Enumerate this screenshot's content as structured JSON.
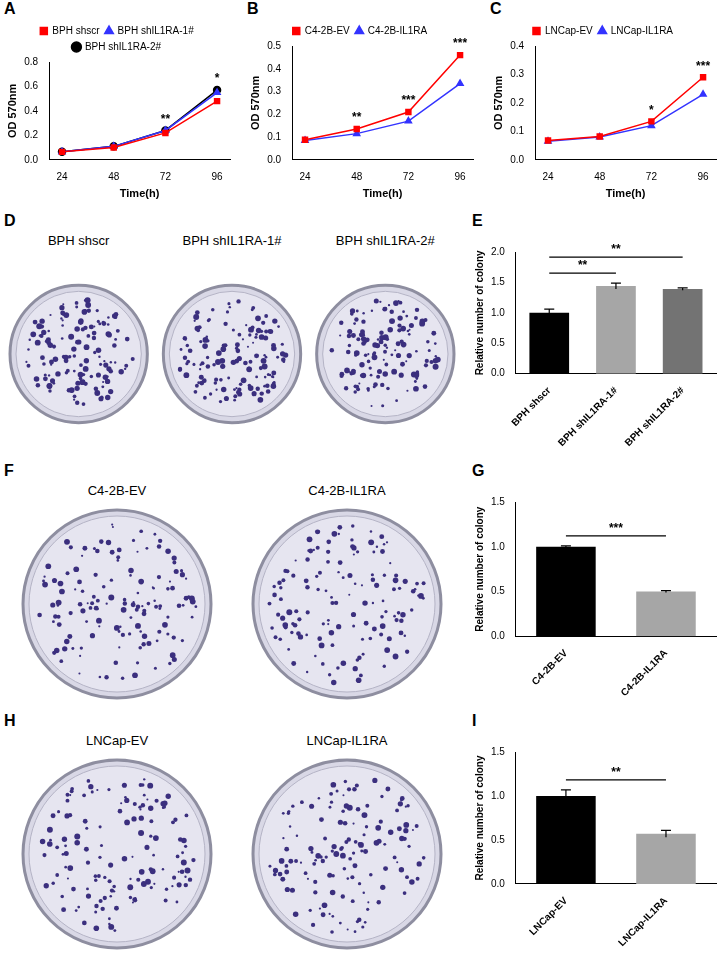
{
  "chart_data": [
    {
      "panel": "A",
      "type": "line",
      "x": [
        24,
        48,
        72,
        96
      ],
      "xlim": [
        18,
        102
      ],
      "xticks": [
        24,
        48,
        72,
        96
      ],
      "ylim": [
        0,
        0.8
      ],
      "yticks": [
        {
          "value": 0,
          "label": "0.0"
        },
        0.2,
        0.4,
        0.6,
        0.8
      ],
      "x_label": "Time(h)",
      "y_label": "OD 570nm",
      "legend": "top",
      "grid": false,
      "series": [
        {
          "name": "BPH shscr",
          "color": "#ff0000",
          "marker": "square",
          "values": [
            0.065,
            0.1,
            0.22,
            0.48
          ]
        },
        {
          "name": "BPH shIL1RA-1#",
          "color": "#3333ff",
          "marker": "triangle",
          "values": [
            0.065,
            0.11,
            0.24,
            0.55
          ]
        },
        {
          "name": "BPH shIL1RA-2#",
          "color": "#000000",
          "marker": "circle",
          "values": [
            0.065,
            0.11,
            0.24,
            0.57
          ]
        }
      ],
      "annotations": [
        {
          "x": 72,
          "text": "**"
        },
        {
          "x": 96,
          "text": "*"
        }
      ]
    },
    {
      "panel": "B",
      "type": "line",
      "x": [
        24,
        48,
        72,
        96
      ],
      "xlim": [
        18,
        102
      ],
      "xticks": [
        24,
        48,
        72,
        96
      ],
      "ylim": [
        0,
        0.5
      ],
      "yticks": [
        {
          "value": 0,
          "label": "0.0"
        },
        0.1,
        0.2,
        0.3,
        0.4,
        0.5
      ],
      "x_label": "Time(h)",
      "y_label": "OD 570nm",
      "legend": "top",
      "grid": false,
      "series": [
        {
          "name": "C4-2B-EV",
          "color": "#ff0000",
          "marker": "square",
          "values": [
            0.088,
            0.135,
            0.21,
            0.46
          ]
        },
        {
          "name": "C4-2B-IL1RA",
          "color": "#3333ff",
          "marker": "triangle",
          "values": [
            0.085,
            0.115,
            0.17,
            0.335
          ]
        }
      ],
      "annotations": [
        {
          "x": 48,
          "text": "**"
        },
        {
          "x": 72,
          "text": "***"
        },
        {
          "x": 96,
          "text": "***"
        }
      ]
    },
    {
      "panel": "C",
      "type": "line",
      "x": [
        24,
        48,
        72,
        96
      ],
      "xlim": [
        18,
        102
      ],
      "xticks": [
        24,
        48,
        72,
        96
      ],
      "ylim": [
        0,
        0.4
      ],
      "yticks": [
        {
          "value": 0,
          "label": "0.0"
        },
        0.1,
        0.2,
        0.3,
        0.4
      ],
      "x_label": "Time(h)",
      "y_label": "OD 570nm",
      "legend": "top",
      "grid": false,
      "series": [
        {
          "name": "LNCap-EV",
          "color": "#ff0000",
          "marker": "square",
          "values": [
            0.068,
            0.082,
            0.135,
            0.29
          ]
        },
        {
          "name": "LNCap-IL1RA",
          "color": "#3333ff",
          "marker": "triangle",
          "values": [
            0.065,
            0.08,
            0.12,
            0.23
          ]
        }
      ],
      "annotations": [
        {
          "x": 72,
          "text": "*"
        },
        {
          "x": 96,
          "text": "***"
        }
      ]
    },
    {
      "panel": "E",
      "type": "bar",
      "categories": [
        "BPH shscr",
        "BPH shIL1RA-1#",
        "BPH shIL1RA-2#"
      ],
      "values": [
        1.0,
        1.44,
        1.39
      ],
      "errors": [
        0.06,
        0.05,
        0.02
      ],
      "colors": [
        "#000000",
        "#a6a6a6",
        "#737373"
      ],
      "ylim": [
        0,
        2
      ],
      "yticks": [
        {
          "value": 0,
          "label": "0.0"
        },
        0.5,
        {
          "value": 1,
          "label": "1.0"
        },
        1.5,
        {
          "value": 2,
          "label": "2.0"
        }
      ],
      "y_label": "Relative number of colony",
      "grid": false,
      "comparisons": [
        {
          "from": 0,
          "to": 1,
          "text": "**"
        },
        {
          "from": 0,
          "to": 2,
          "text": "**"
        }
      ]
    },
    {
      "panel": "G",
      "type": "bar",
      "categories": [
        "C4-2B-EV",
        "C4-2B-IL1RA"
      ],
      "values": [
        1.0,
        0.5
      ],
      "errors": [
        0.01,
        0.01
      ],
      "colors": [
        "#000000",
        "#a6a6a6"
      ],
      "ylim": [
        0,
        1.5
      ],
      "yticks": [
        {
          "value": 0,
          "label": "0.0"
        },
        0.5,
        {
          "value": 1,
          "label": "1.0"
        },
        1.5
      ],
      "y_label": "Relative number of colony",
      "grid": false,
      "comparisons": [
        {
          "from": 0,
          "to": 1,
          "text": "***"
        }
      ]
    },
    {
      "panel": "I",
      "type": "bar",
      "categories": [
        "LNCap-EV",
        "LNCap-IL1RA"
      ],
      "values": [
        1.0,
        0.57
      ],
      "errors": [
        0.07,
        0.04
      ],
      "colors": [
        "#000000",
        "#a6a6a6"
      ],
      "ylim": [
        0,
        1.5
      ],
      "yticks": [
        {
          "value": 0,
          "label": "0.0"
        },
        0.5,
        {
          "value": 1,
          "label": "1.0"
        },
        1.5
      ],
      "y_label": "Relative number of colony",
      "grid": false,
      "comparisons": [
        {
          "from": 0,
          "to": 1,
          "text": "**"
        }
      ]
    }
  ],
  "plate_panels": [
    {
      "panel": "D",
      "plates": [
        "BPH shscr",
        "BPH shIL1RA-1#",
        "BPH shIL1RA-2#"
      ]
    },
    {
      "panel": "F",
      "plates": [
        "C4-2B-EV",
        "C4-2B-IL1RA"
      ]
    },
    {
      "panel": "H",
      "plates": [
        "LNCap-EV",
        "LNCap-IL1RA"
      ]
    }
  ]
}
